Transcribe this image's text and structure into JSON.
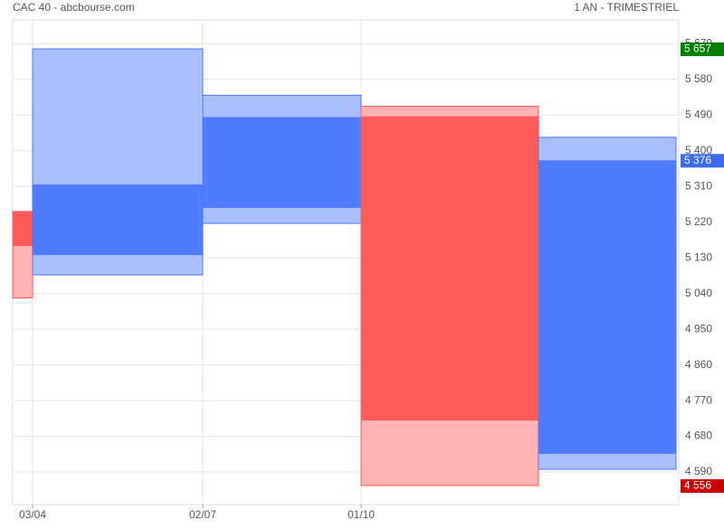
{
  "chart_data": {
    "type": "candlestick",
    "title": "CAC 40 - abcbourse.com",
    "subtitle": "1 AN - TRIMESTRIEL",
    "categories": [
      null,
      "03/04",
      "02/07",
      "01/10",
      null
    ],
    "series": [
      {
        "name": "open",
        "values": [
          5247,
          5137,
          5256,
          5487,
          4636
        ]
      },
      {
        "name": "high",
        "values": [
          5247,
          5657,
          5540,
          5512,
          5434
        ]
      },
      {
        "name": "low",
        "values": [
          5029,
          5087,
          5217,
          4556,
          4597
        ]
      },
      {
        "name": "close",
        "values": [
          5160,
          5315,
          5485,
          4720,
          5376
        ]
      }
    ],
    "up_color": "#4a78ff",
    "up_range_color": "#aabfff",
    "down_color": "#ff5555",
    "down_range_color": "#ffb3b3",
    "ylim": [
      4508,
      5730
    ],
    "yticks": [
      {
        "value": 5670,
        "label": "5 670"
      },
      {
        "value": 5580,
        "label": "5 580"
      },
      {
        "value": 5490,
        "label": "5 490"
      },
      {
        "value": 5400,
        "label": "5 400"
      },
      {
        "value": 5310,
        "label": "5 310"
      },
      {
        "value": 5220,
        "label": "5 220"
      },
      {
        "value": 5130,
        "label": "5 130"
      },
      {
        "value": 5040,
        "label": "5 040"
      },
      {
        "value": 4950,
        "label": "4 950"
      },
      {
        "value": 4860,
        "label": "4 860"
      },
      {
        "value": 4770,
        "label": "4 770"
      },
      {
        "value": 4680,
        "label": "4 680"
      },
      {
        "value": 4590,
        "label": "4 590"
      }
    ],
    "markers": [
      {
        "value": 5657,
        "label": "5 657",
        "color": "#008000"
      },
      {
        "value": 5376,
        "label": "5 376",
        "color": "#3b6cf0"
      },
      {
        "value": 4556,
        "label": "4 556",
        "color": "#cc0000"
      }
    ],
    "grid": true
  }
}
